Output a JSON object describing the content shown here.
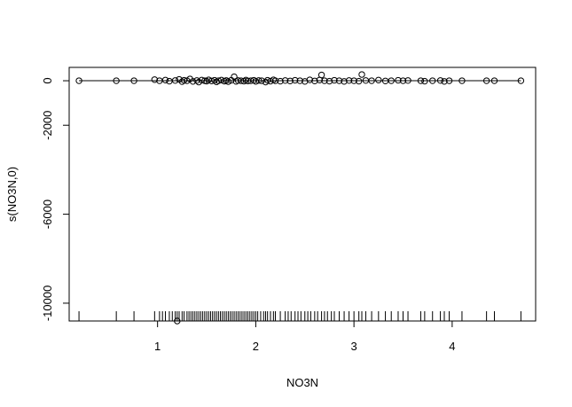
{
  "chart_data": {
    "type": "scatter",
    "title": "",
    "xlabel": "NO3N",
    "ylabel": "s(NO3N,0)",
    "xlim": [
      0.1,
      4.85
    ],
    "ylim": [
      -10800,
      600
    ],
    "x_ticks": [
      1,
      2,
      3,
      4
    ],
    "y_ticks": [
      0,
      -2000,
      -6000,
      -10000
    ],
    "grid": false,
    "legend": "none",
    "smooth_line": {
      "x": [
        0.2,
        4.7
      ],
      "y": [
        0,
        0
      ]
    },
    "series": [
      {
        "points": [
          [
            0.2,
            0
          ],
          [
            0.58,
            0
          ],
          [
            0.76,
            0
          ],
          [
            0.97,
            50
          ],
          [
            1.02,
            0
          ],
          [
            1.08,
            30
          ],
          [
            1.12,
            -20
          ],
          [
            1.18,
            10
          ],
          [
            1.2,
            -10800
          ],
          [
            1.22,
            60
          ],
          [
            1.25,
            -40
          ],
          [
            1.27,
            20
          ],
          [
            1.3,
            0
          ],
          [
            1.33,
            80
          ],
          [
            1.36,
            -30
          ],
          [
            1.4,
            10
          ],
          [
            1.42,
            -60
          ],
          [
            1.45,
            30
          ],
          [
            1.48,
            0
          ],
          [
            1.5,
            -20
          ],
          [
            1.52,
            40
          ],
          [
            1.55,
            -10
          ],
          [
            1.58,
            20
          ],
          [
            1.6,
            -50
          ],
          [
            1.62,
            0
          ],
          [
            1.65,
            30
          ],
          [
            1.68,
            -20
          ],
          [
            1.7,
            10
          ],
          [
            1.72,
            -40
          ],
          [
            1.75,
            20
          ],
          [
            1.78,
            180
          ],
          [
            1.8,
            -30
          ],
          [
            1.82,
            10
          ],
          [
            1.85,
            0
          ],
          [
            1.88,
            -20
          ],
          [
            1.9,
            30
          ],
          [
            1.92,
            -10
          ],
          [
            1.95,
            0
          ],
          [
            1.98,
            20
          ],
          [
            2.0,
            -30
          ],
          [
            2.03,
            10
          ],
          [
            2.06,
            0
          ],
          [
            2.1,
            -60
          ],
          [
            2.12,
            20
          ],
          [
            2.15,
            -20
          ],
          [
            2.18,
            40
          ],
          [
            2.2,
            0
          ],
          [
            2.25,
            -20
          ],
          [
            2.3,
            10
          ],
          [
            2.35,
            -10
          ],
          [
            2.4,
            20
          ],
          [
            2.45,
            0
          ],
          [
            2.5,
            -30
          ],
          [
            2.55,
            40
          ],
          [
            2.6,
            -10
          ],
          [
            2.65,
            30
          ],
          [
            2.67,
            260
          ],
          [
            2.7,
            0
          ],
          [
            2.75,
            -20
          ],
          [
            2.8,
            20
          ],
          [
            2.85,
            0
          ],
          [
            2.9,
            -30
          ],
          [
            2.95,
            10
          ],
          [
            3.0,
            0
          ],
          [
            3.05,
            -20
          ],
          [
            3.08,
            280
          ],
          [
            3.12,
            10
          ],
          [
            3.18,
            0
          ],
          [
            3.25,
            30
          ],
          [
            3.32,
            -10
          ],
          [
            3.38,
            0
          ],
          [
            3.45,
            20
          ],
          [
            3.5,
            0
          ],
          [
            3.55,
            10
          ],
          [
            3.68,
            0
          ],
          [
            3.72,
            -20
          ],
          [
            3.8,
            0
          ],
          [
            3.88,
            10
          ],
          [
            3.92,
            -30
          ],
          [
            3.97,
            0
          ],
          [
            4.1,
            0
          ],
          [
            4.35,
            0
          ],
          [
            4.43,
            0
          ],
          [
            4.7,
            0
          ]
        ]
      }
    ],
    "rug_x": [
      0.2,
      0.58,
      0.76,
      0.97,
      1.02,
      1.05,
      1.08,
      1.12,
      1.15,
      1.18,
      1.2,
      1.22,
      1.25,
      1.27,
      1.3,
      1.32,
      1.34,
      1.36,
      1.38,
      1.4,
      1.42,
      1.44,
      1.46,
      1.48,
      1.5,
      1.52,
      1.54,
      1.56,
      1.58,
      1.6,
      1.62,
      1.64,
      1.66,
      1.68,
      1.7,
      1.72,
      1.74,
      1.76,
      1.78,
      1.8,
      1.82,
      1.84,
      1.86,
      1.88,
      1.9,
      1.92,
      1.94,
      1.96,
      1.98,
      2.0,
      2.02,
      2.05,
      2.08,
      2.1,
      2.12,
      2.15,
      2.18,
      2.2,
      2.25,
      2.3,
      2.33,
      2.36,
      2.4,
      2.43,
      2.46,
      2.5,
      2.53,
      2.56,
      2.6,
      2.63,
      2.67,
      2.7,
      2.73,
      2.77,
      2.8,
      2.85,
      2.9,
      2.95,
      3.0,
      3.05,
      3.08,
      3.12,
      3.18,
      3.25,
      3.32,
      3.38,
      3.45,
      3.5,
      3.55,
      3.68,
      3.72,
      3.8,
      3.88,
      3.92,
      3.97,
      4.1,
      4.35,
      4.43,
      4.7
    ]
  }
}
